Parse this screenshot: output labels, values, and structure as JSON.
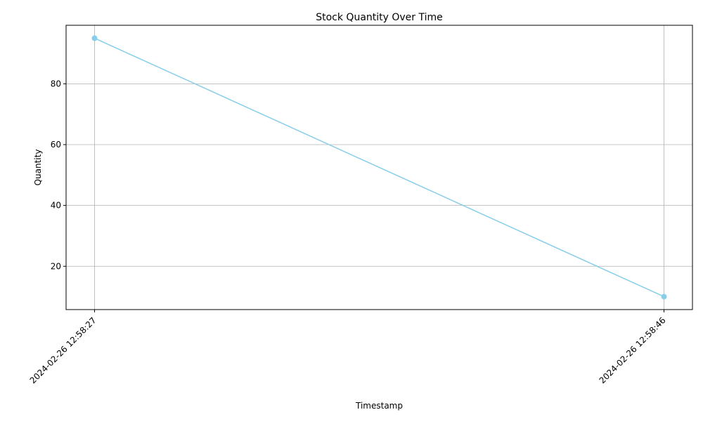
{
  "chart_data": {
    "type": "line",
    "title": "Stock Quantity Over Time",
    "xlabel": "Timestamp",
    "ylabel": "Quantity",
    "x": [
      "2024-02-26 12:58:27",
      "2024-02-26 12:58:46"
    ],
    "series": [
      {
        "values": [
          95,
          10
        ],
        "color": "#87CEEB",
        "marker": "circle"
      }
    ],
    "xticks": [
      "2024-02-26 12:58:27",
      "2024-02-26 12:58:46"
    ],
    "yticks": [
      20,
      40,
      60,
      80
    ],
    "ylim": [
      5.75,
      99.25
    ],
    "grid": true,
    "legend": "none",
    "colors": {
      "grid": "#b0b0b0",
      "axis": "#000000"
    }
  }
}
